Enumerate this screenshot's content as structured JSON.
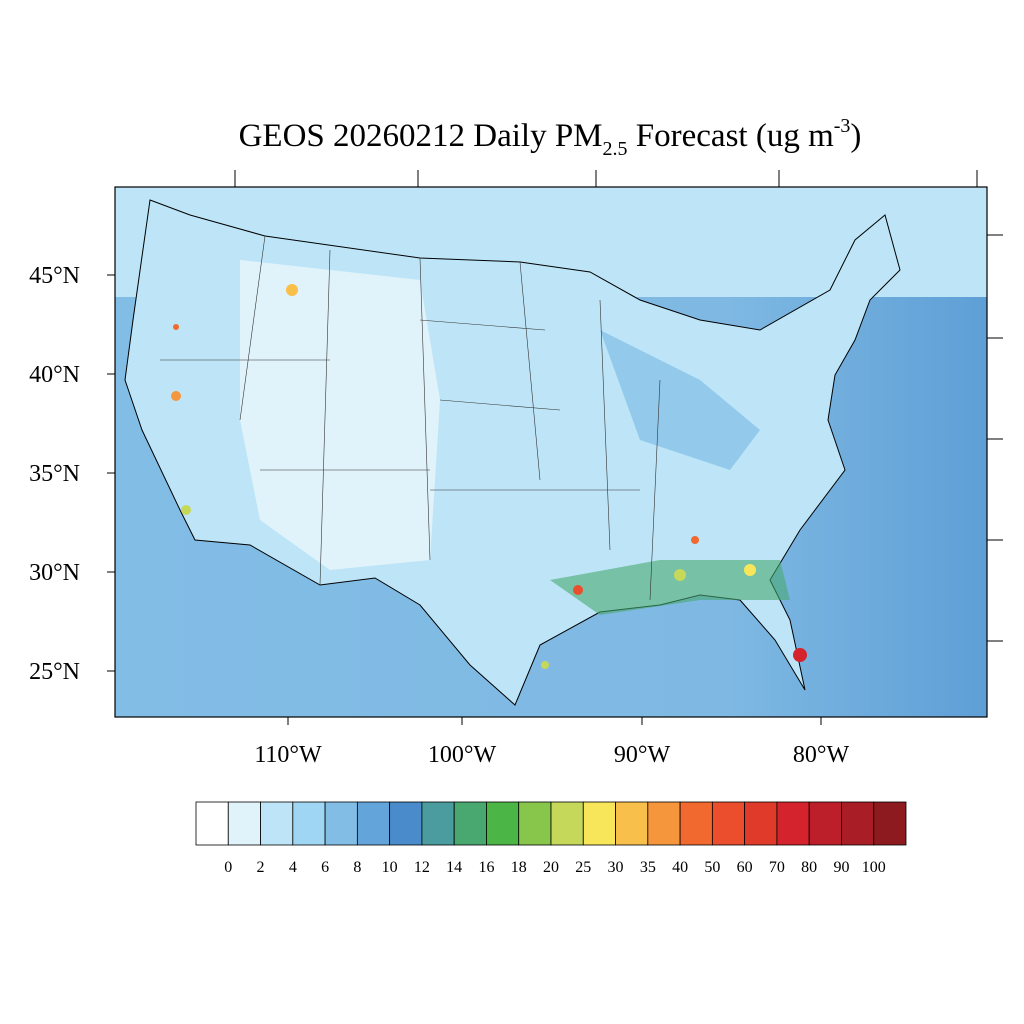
{
  "title": {
    "main": "GEOS 20260212 Daily PM",
    "sub": "2.5",
    "mid": " Forecast (ug m",
    "sup": "-3",
    "end": ")"
  },
  "lat_labels": [
    "45°N",
    "40°N",
    "35°N",
    "30°N",
    "25°N"
  ],
  "lon_labels": [
    "110°W",
    "100°W",
    "90°W",
    "80°W"
  ],
  "colorbar": {
    "levels": [
      0,
      2,
      4,
      6,
      8,
      10,
      12,
      14,
      16,
      18,
      20,
      25,
      30,
      35,
      40,
      50,
      60,
      70,
      80,
      90,
      100
    ],
    "colors": [
      "#ffffff",
      "#e0f3fb",
      "#bde5f7",
      "#9fd6f3",
      "#82bde6",
      "#63a4da",
      "#4a8bcb",
      "#4a9c9f",
      "#48a870",
      "#4bb546",
      "#87c54b",
      "#c5d85a",
      "#f7e65a",
      "#f8c04a",
      "#f6963c",
      "#f2692f",
      "#eb4e2d",
      "#e03a2a",
      "#d4232c",
      "#bd1f2a",
      "#a81d26",
      "#8c1a1e"
    ]
  }
}
